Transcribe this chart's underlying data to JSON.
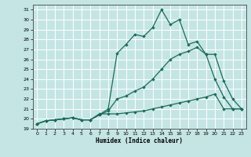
{
  "xlabel": "Humidex (Indice chaleur)",
  "bg_color": "#c5e5e5",
  "grid_color": "#ffffff",
  "line_color": "#1a6b5a",
  "xlim": [
    -0.5,
    23.5
  ],
  "ylim": [
    19.0,
    31.5
  ],
  "yticks": [
    19,
    20,
    21,
    22,
    23,
    24,
    25,
    26,
    27,
    28,
    29,
    30,
    31
  ],
  "xticks": [
    0,
    1,
    2,
    3,
    4,
    5,
    6,
    7,
    8,
    9,
    10,
    11,
    12,
    13,
    14,
    15,
    16,
    17,
    18,
    19,
    20,
    21,
    22,
    23
  ],
  "line1_x": [
    0,
    1,
    2,
    3,
    4,
    5,
    6,
    7,
    8,
    9,
    10,
    11,
    12,
    13,
    14,
    15,
    16,
    17,
    18,
    19,
    20,
    21,
    22,
    23
  ],
  "line1_y": [
    19.5,
    19.8,
    19.9,
    20.0,
    20.1,
    19.9,
    19.9,
    20.5,
    20.5,
    20.5,
    20.6,
    20.7,
    20.8,
    21.0,
    21.2,
    21.4,
    21.6,
    21.8,
    22.0,
    22.2,
    22.5,
    21.0,
    21.0,
    21.0
  ],
  "line2_x": [
    0,
    1,
    2,
    3,
    4,
    5,
    6,
    7,
    8,
    9,
    10,
    11,
    12,
    13,
    14,
    15,
    16,
    17,
    18,
    19,
    20,
    21,
    22,
    23
  ],
  "line2_y": [
    19.5,
    19.8,
    19.9,
    20.0,
    20.1,
    19.9,
    19.9,
    20.4,
    20.8,
    22.0,
    22.3,
    22.8,
    23.2,
    24.0,
    25.0,
    26.0,
    26.5,
    26.8,
    27.2,
    26.5,
    26.5,
    23.8,
    22.0,
    21.0
  ],
  "line3_x": [
    0,
    1,
    2,
    3,
    4,
    5,
    6,
    7,
    8,
    9,
    10,
    11,
    12,
    13,
    14,
    15,
    16,
    17,
    18,
    19,
    20,
    21,
    22,
    23
  ],
  "line3_y": [
    19.5,
    19.8,
    19.9,
    20.0,
    20.1,
    19.9,
    19.9,
    20.4,
    21.0,
    26.6,
    27.5,
    28.5,
    28.3,
    29.2,
    31.0,
    29.5,
    30.0,
    27.5,
    27.8,
    26.5,
    24.0,
    22.2,
    21.0,
    21.0
  ]
}
